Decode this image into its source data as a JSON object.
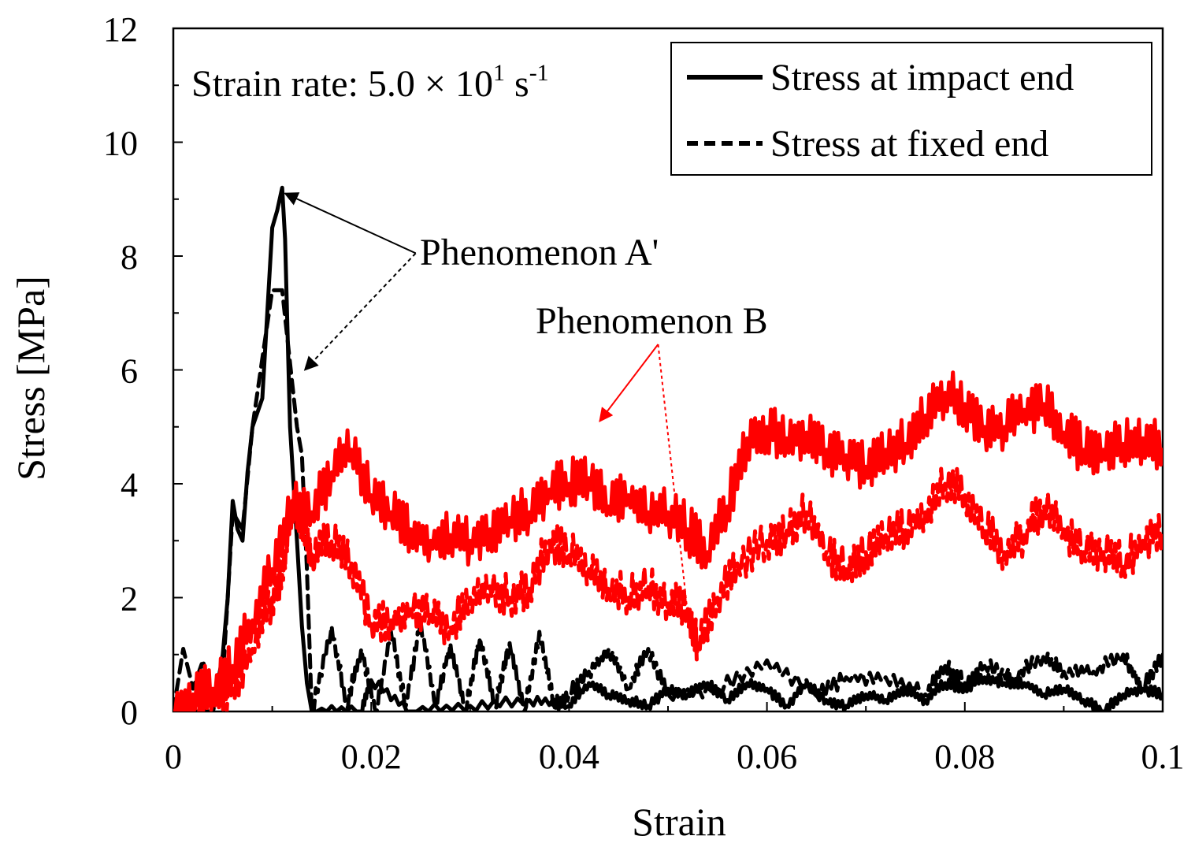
{
  "chart_data": {
    "type": "line",
    "xlabel": "Strain",
    "ylabel": "Stress [MPa]",
    "xlim": [
      0,
      0.1
    ],
    "ylim": [
      0,
      12
    ],
    "x_ticks": [
      0,
      0.02,
      0.04,
      0.06,
      0.08,
      0.1
    ],
    "x_tick_labels": [
      "0",
      "0.02",
      "0.04",
      "0.06",
      "0.08",
      "0.1"
    ],
    "y_ticks": [
      0,
      2,
      4,
      6,
      8,
      10,
      12
    ],
    "y_tick_labels": [
      "0",
      "2",
      "4",
      "6",
      "8",
      "10",
      "12"
    ],
    "grid": false,
    "legend": {
      "placement": "top-right",
      "entries": [
        {
          "label": "Stress at impact end",
          "style": "solid",
          "color": "#000000"
        },
        {
          "label": "Stress at fixed end",
          "style": "dashed",
          "color": "#000000"
        }
      ]
    },
    "strain_rate": {
      "prefix": "Strain rate: 5.0 × 10",
      "exp": "1",
      "unit": " s",
      "unit_exp": "-1"
    },
    "annotations": {
      "phenomenon_a": {
        "label": "Phenomenon A'",
        "anchor": [
          0.0245,
          8.05
        ],
        "targets": [
          [
            0.0113,
            9.1
          ],
          [
            0.0133,
            6.0
          ]
        ]
      },
      "phenomenon_b": {
        "label": "Phenomenon B",
        "anchor": [
          0.049,
          6.45
        ],
        "targets": [
          [
            0.0431,
            5.1
          ],
          [
            0.052,
            1.7
          ]
        ]
      }
    },
    "series": [
      {
        "name": "Stress at impact end (black)",
        "style": "solid",
        "color": "#000000",
        "x": [
          0,
          0.002,
          0.004,
          0.0045,
          0.005,
          0.0055,
          0.006,
          0.0065,
          0.007,
          0.0075,
          0.008,
          0.009,
          0.0095,
          0.01,
          0.0105,
          0.011,
          0.0113,
          0.0118,
          0.0125,
          0.013,
          0.0135,
          0.014
        ],
        "y": [
          0,
          0,
          0,
          0.5,
          1.0,
          2.0,
          3.7,
          3.2,
          3.0,
          4.2,
          5.0,
          5.5,
          7.0,
          8.5,
          8.8,
          9.2,
          8.3,
          5.0,
          3.0,
          1.5,
          0.5,
          0
        ],
        "noise": 0
      },
      {
        "name": "Stress at fixed end (black)",
        "style": "dashed",
        "color": "#000000",
        "x": [
          0,
          0.001,
          0.002,
          0.003,
          0.004,
          0.005,
          0.0055,
          0.006,
          0.007,
          0.008,
          0.009,
          0.01,
          0.011,
          0.012,
          0.0125,
          0.013,
          0.0135,
          0.014
        ],
        "y": [
          0,
          1.1,
          0.4,
          0.9,
          0.0,
          0.6,
          2.0,
          3.5,
          3.2,
          5.0,
          6.2,
          7.4,
          7.4,
          5.8,
          5.0,
          4.5,
          2.5,
          0
        ],
        "noise": 0
      },
      {
        "name": "Stress at impact end (black, tail)",
        "style": "solid",
        "color": "#000000",
        "x": [
          0.014,
          0.019,
          0.02,
          0.024,
          0.03,
          0.036,
          0.04,
          0.042,
          0.044,
          0.046,
          0.048,
          0.05,
          0.052,
          0.054,
          0.056,
          0.058,
          0.06,
          0.062,
          0.064,
          0.066,
          0.068,
          0.07,
          0.072,
          0.074,
          0.076,
          0.078,
          0.08,
          0.082,
          0.084,
          0.086,
          0.088,
          0.09,
          0.092,
          0.094,
          0.096,
          0.098,
          0.1
        ],
        "y": [
          0,
          0,
          0.55,
          0.0,
          0.1,
          0.2,
          0.1,
          0.5,
          0.3,
          0.2,
          0.1,
          0.4,
          0.3,
          0.5,
          0.2,
          0.5,
          0.4,
          0.1,
          0.5,
          0.2,
          0.1,
          0.3,
          0.2,
          0.4,
          0.2,
          0.5,
          0.4,
          0.6,
          0.5,
          0.5,
          0.3,
          0.4,
          0.2,
          0.0,
          0.3,
          0.4,
          0.3
        ],
        "noise": 0.08
      },
      {
        "name": "Stress at fixed end (black, tail)",
        "style": "dashed",
        "color": "#000000",
        "x": [
          0.014,
          0.016,
          0.0175,
          0.019,
          0.0205,
          0.022,
          0.0235,
          0.025,
          0.0265,
          0.028,
          0.0295,
          0.031,
          0.0325,
          0.034,
          0.0355,
          0.037,
          0.0385,
          0.04,
          0.042,
          0.044,
          0.046,
          0.048,
          0.05,
          0.055,
          0.06,
          0.065,
          0.068,
          0.072,
          0.076,
          0.078,
          0.08,
          0.082,
          0.085,
          0.088,
          0.09,
          0.093,
          0.096,
          0.098,
          0.1
        ],
        "y": [
          0,
          1.5,
          0.1,
          1.1,
          0.0,
          1.4,
          0.1,
          1.6,
          0.1,
          1.2,
          0.0,
          1.3,
          0.1,
          1.2,
          0.0,
          1.4,
          0.1,
          0.3,
          0.7,
          1.1,
          0.4,
          1.1,
          0.3,
          0.4,
          0.9,
          0.3,
          0.6,
          0.6,
          0.3,
          0.8,
          0.5,
          0.8,
          0.6,
          1.0,
          0.7,
          0.7,
          1.0,
          0.4,
          1.0
        ],
        "noise": 0.12
      },
      {
        "name": "Stress at impact end (red)",
        "style": "solid",
        "color": "#ff0000",
        "x": [
          0,
          0.002,
          0.004,
          0.006,
          0.008,
          0.01,
          0.012,
          0.014,
          0.016,
          0.018,
          0.02,
          0.022,
          0.024,
          0.026,
          0.028,
          0.03,
          0.032,
          0.034,
          0.036,
          0.038,
          0.04,
          0.042,
          0.044,
          0.046,
          0.048,
          0.05,
          0.052,
          0.054,
          0.056,
          0.058,
          0.06,
          0.062,
          0.064,
          0.066,
          0.068,
          0.07,
          0.072,
          0.074,
          0.076,
          0.078,
          0.08,
          0.082,
          0.084,
          0.086,
          0.088,
          0.09,
          0.092,
          0.094,
          0.096,
          0.098,
          0.1
        ],
        "y": [
          0,
          0.3,
          0.4,
          0.8,
          1.6,
          2.5,
          3.7,
          3.5,
          4.2,
          4.6,
          3.8,
          3.5,
          3.2,
          3.0,
          3.1,
          3.0,
          3.2,
          3.4,
          3.5,
          3.9,
          4.0,
          4.1,
          3.6,
          3.8,
          3.5,
          3.5,
          3.2,
          2.8,
          3.6,
          4.8,
          5.0,
          4.8,
          4.9,
          4.6,
          4.5,
          4.3,
          4.6,
          4.7,
          5.2,
          5.6,
          5.4,
          5.0,
          5.0,
          5.3,
          5.4,
          4.9,
          4.6,
          4.6,
          4.7,
          4.8,
          4.6
        ],
        "noise": 0.38
      },
      {
        "name": "Stress at fixed end (red)",
        "style": "dashed",
        "color": "#ff0000",
        "x": [
          0,
          0.002,
          0.004,
          0.006,
          0.008,
          0.01,
          0.011,
          0.012,
          0.013,
          0.014,
          0.016,
          0.018,
          0.02,
          0.022,
          0.024,
          0.026,
          0.028,
          0.03,
          0.032,
          0.034,
          0.036,
          0.038,
          0.04,
          0.042,
          0.044,
          0.046,
          0.048,
          0.05,
          0.052,
          0.053,
          0.055,
          0.057,
          0.06,
          0.062,
          0.064,
          0.066,
          0.068,
          0.07,
          0.072,
          0.074,
          0.076,
          0.078,
          0.08,
          0.082,
          0.084,
          0.086,
          0.088,
          0.09,
          0.092,
          0.094,
          0.096,
          0.098,
          0.1
        ],
        "y": [
          0,
          0.0,
          0.2,
          0.4,
          1.1,
          2.0,
          2.4,
          3.6,
          3.4,
          2.8,
          3.0,
          2.6,
          1.6,
          1.6,
          1.8,
          1.7,
          1.5,
          2.0,
          2.2,
          2.0,
          2.2,
          3.0,
          2.8,
          2.5,
          2.2,
          2.0,
          2.2,
          1.9,
          1.8,
          1.2,
          2.0,
          2.6,
          3.0,
          3.2,
          3.5,
          2.8,
          2.5,
          2.8,
          3.1,
          3.2,
          3.5,
          4.0,
          3.8,
          3.2,
          2.8,
          3.1,
          3.6,
          3.2,
          2.8,
          2.8,
          2.6,
          3.0,
          3.2
        ],
        "noise": 0.32
      }
    ]
  }
}
